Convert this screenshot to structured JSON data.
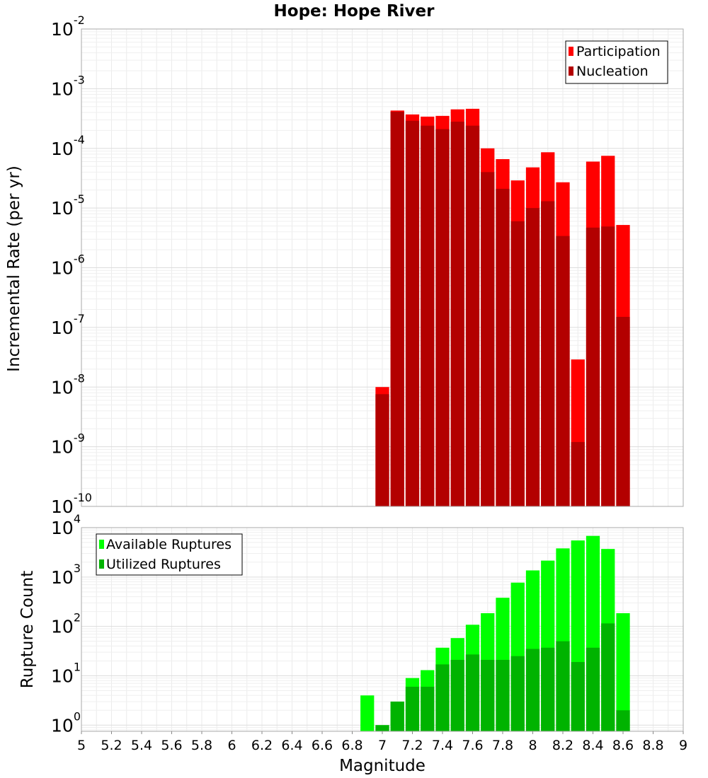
{
  "chart_data": [
    {
      "type": "bar",
      "title": "Hope: Hope River",
      "ylabel": "Incremental Rate (per yr)",
      "xlabel": "",
      "yscale": "log",
      "ylim": [
        1e-10,
        0.01
      ],
      "xlim": [
        5,
        9
      ],
      "legend_position": "top-right",
      "x": [
        7.0,
        7.1,
        7.2,
        7.3,
        7.4,
        7.5,
        7.6,
        7.7,
        7.8,
        7.9,
        8.0,
        8.1,
        8.2,
        8.3,
        8.4,
        8.5,
        8.6
      ],
      "series": [
        {
          "name": "Participation",
          "color": "#ff0000",
          "values": [
            1e-08,
            0.00043,
            0.00037,
            0.00034,
            0.00035,
            0.00045,
            0.00046,
            0.0001,
            6.6e-05,
            2.9e-05,
            4.8e-05,
            8.6e-05,
            2.7e-05,
            2.9e-08,
            6e-05,
            7.5e-05,
            5.2e-06
          ]
        },
        {
          "name": "Nucleation",
          "color": "#b30000",
          "values": [
            7.6e-09,
            0.00041,
            0.00029,
            0.00024,
            0.00021,
            0.00028,
            0.00024,
            4e-05,
            2.1e-05,
            6e-06,
            1e-05,
            1.3e-05,
            3.4e-06,
            1.2e-09,
            4.7e-06,
            4.9e-06,
            1.5e-07
          ]
        }
      ]
    },
    {
      "type": "bar",
      "title": "",
      "ylabel": "Rupture Count",
      "xlabel": "Magnitude",
      "yscale": "log",
      "ylim": [
        0.75,
        10000
      ],
      "xlim": [
        5,
        9
      ],
      "legend_position": "top-left",
      "x": [
        6.9,
        7.0,
        7.1,
        7.2,
        7.3,
        7.4,
        7.5,
        7.6,
        7.7,
        7.8,
        7.9,
        8.0,
        8.1,
        8.2,
        8.3,
        8.4,
        8.5,
        8.6
      ],
      "series": [
        {
          "name": "Available Ruptures",
          "color": "#00ff00",
          "values": [
            4,
            1,
            3,
            9,
            13,
            37,
            58,
            108,
            185,
            380,
            770,
            1360,
            2150,
            3800,
            5500,
            6800,
            3700,
            185
          ]
        },
        {
          "name": "Utilized Ruptures",
          "color": "#00b300",
          "values": [
            0,
            1,
            3,
            6,
            6,
            17,
            21,
            27,
            21,
            21,
            25,
            35,
            37,
            50,
            19,
            37,
            115,
            2
          ]
        }
      ]
    }
  ],
  "x_ticks": [
    "5",
    "5.2",
    "5.4",
    "5.6",
    "5.8",
    "6",
    "6.2",
    "6.4",
    "6.6",
    "6.8",
    "7",
    "7.2",
    "7.4",
    "7.6",
    "7.8",
    "8",
    "8.2",
    "8.4",
    "8.6",
    "8.8",
    "9"
  ],
  "top_y_ticks": [
    {
      "base": "10",
      "exp": "-2"
    },
    {
      "base": "10",
      "exp": "-3"
    },
    {
      "base": "10",
      "exp": "-4"
    },
    {
      "base": "10",
      "exp": "-5"
    },
    {
      "base": "10",
      "exp": "-6"
    },
    {
      "base": "10",
      "exp": "-7"
    },
    {
      "base": "10",
      "exp": "-8"
    },
    {
      "base": "10",
      "exp": "-9"
    },
    {
      "base": "10",
      "exp": "-10"
    }
  ],
  "bottom_y_ticks": [
    {
      "base": "10",
      "exp": "4"
    },
    {
      "base": "10",
      "exp": "3"
    },
    {
      "base": "10",
      "exp": "2"
    },
    {
      "base": "10",
      "exp": "1"
    },
    {
      "base": "10",
      "exp": "0"
    }
  ]
}
